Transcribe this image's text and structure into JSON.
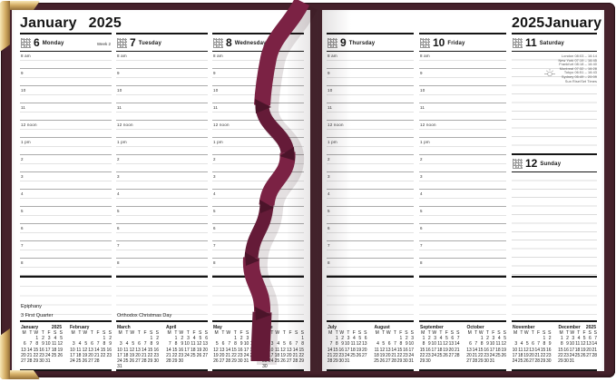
{
  "page_header_left": {
    "month": "January",
    "year": "2025"
  },
  "page_header_right": {
    "year": "2025",
    "month": "January"
  },
  "time_labels": [
    "8 am",
    "9",
    "10",
    "11",
    "12 noon",
    "1 pm",
    "2",
    "3",
    "4",
    "5",
    "6",
    "7",
    "8"
  ],
  "weekday_header": [
    "M",
    "T",
    "W",
    "T",
    "F",
    "S",
    "S"
  ],
  "left_days": [
    {
      "number": "6",
      "name": "Monday",
      "week_label": "Week 2",
      "notes": [
        "Epiphany",
        "3 First Quarter"
      ]
    },
    {
      "number": "7",
      "name": "Tuesday",
      "notes": [
        "Orthodox Christmas Day"
      ]
    },
    {
      "number": "8",
      "name": "Wednesday",
      "notes": []
    }
  ],
  "right_days": [
    {
      "number": "9",
      "name": "Thursday",
      "notes": []
    },
    {
      "number": "10",
      "name": "Friday",
      "notes": []
    }
  ],
  "saturday": {
    "number": "11",
    "name": "Saturday",
    "sun_times": [
      "London 08:03 – 16:14",
      "New York 07:19 – 16:45",
      "Frankfurt 08:18 – 16:40",
      "Montreal 07:32 – 16:28",
      "Tokyo 06:51 – 16:43",
      "Sydney 05:49 – 20:09",
      "Sun Rise/Set Times"
    ]
  },
  "sunday": {
    "number": "12",
    "name": "Sunday"
  },
  "mini_calendars_left": [
    {
      "name": "January",
      "year": "2025",
      "weeks": [
        [
          "",
          "",
          "1",
          "2",
          "3",
          "4",
          "5"
        ],
        [
          "6",
          "7",
          "8",
          "9",
          "10",
          "11",
          "12"
        ],
        [
          "13",
          "14",
          "15",
          "16",
          "17",
          "18",
          "19"
        ],
        [
          "20",
          "21",
          "22",
          "23",
          "24",
          "25",
          "26"
        ],
        [
          "27",
          "28",
          "29",
          "30",
          "31",
          "",
          ""
        ]
      ]
    },
    {
      "name": "February",
      "weeks": [
        [
          "",
          "",
          "",
          "",
          "",
          "1",
          "2"
        ],
        [
          "3",
          "4",
          "5",
          "6",
          "7",
          "8",
          "9"
        ],
        [
          "10",
          "11",
          "12",
          "13",
          "14",
          "15",
          "16"
        ],
        [
          "17",
          "18",
          "19",
          "20",
          "21",
          "22",
          "23"
        ],
        [
          "24",
          "25",
          "26",
          "27",
          "28",
          "",
          ""
        ]
      ]
    },
    {
      "name": "March",
      "weeks": [
        [
          "",
          "",
          "",
          "",
          "",
          "1",
          "2"
        ],
        [
          "3",
          "4",
          "5",
          "6",
          "7",
          "8",
          "9"
        ],
        [
          "10",
          "11",
          "12",
          "13",
          "14",
          "15",
          "16"
        ],
        [
          "17",
          "18",
          "19",
          "20",
          "21",
          "22",
          "23"
        ],
        [
          "24",
          "25",
          "26",
          "27",
          "28",
          "29",
          "30"
        ],
        [
          "31",
          "",
          "",
          "",
          "",
          "",
          ""
        ]
      ]
    },
    {
      "name": "April",
      "weeks": [
        [
          "",
          "1",
          "2",
          "3",
          "4",
          "5",
          "6"
        ],
        [
          "7",
          "8",
          "9",
          "10",
          "11",
          "12",
          "13"
        ],
        [
          "14",
          "15",
          "16",
          "17",
          "18",
          "19",
          "20"
        ],
        [
          "21",
          "22",
          "23",
          "24",
          "25",
          "26",
          "27"
        ],
        [
          "28",
          "29",
          "30",
          "",
          "",
          "",
          ""
        ]
      ]
    },
    {
      "name": "May",
      "weeks": [
        [
          "",
          "",
          "",
          "1",
          "2",
          "3",
          "4"
        ],
        [
          "5",
          "6",
          "7",
          "8",
          "9",
          "10",
          "11"
        ],
        [
          "12",
          "13",
          "14",
          "15",
          "16",
          "17",
          "18"
        ],
        [
          "19",
          "20",
          "21",
          "22",
          "23",
          "24",
          "25"
        ],
        [
          "26",
          "27",
          "28",
          "29",
          "30",
          "31",
          ""
        ]
      ]
    },
    {
      "name": "June",
      "weeks": [
        [
          "",
          "",
          "",
          "",
          "",
          "",
          "1"
        ],
        [
          "2",
          "3",
          "4",
          "5",
          "6",
          "7",
          "8"
        ],
        [
          "9",
          "10",
          "11",
          "12",
          "13",
          "14",
          "15"
        ],
        [
          "16",
          "17",
          "18",
          "19",
          "20",
          "21",
          "22"
        ],
        [
          "23",
          "24",
          "25",
          "26",
          "27",
          "28",
          "29"
        ],
        [
          "30",
          "",
          "",
          "",
          "",
          "",
          ""
        ]
      ]
    }
  ],
  "mini_calendars_right": [
    {
      "name": "July",
      "weeks": [
        [
          "",
          "1",
          "2",
          "3",
          "4",
          "5",
          "6"
        ],
        [
          "7",
          "8",
          "9",
          "10",
          "11",
          "12",
          "13"
        ],
        [
          "14",
          "15",
          "16",
          "17",
          "18",
          "19",
          "20"
        ],
        [
          "21",
          "22",
          "23",
          "24",
          "25",
          "26",
          "27"
        ],
        [
          "28",
          "29",
          "30",
          "31",
          "",
          "",
          ""
        ]
      ]
    },
    {
      "name": "August",
      "weeks": [
        [
          "",
          "",
          "",
          "",
          "1",
          "2",
          "3"
        ],
        [
          "4",
          "5",
          "6",
          "7",
          "8",
          "9",
          "10"
        ],
        [
          "11",
          "12",
          "13",
          "14",
          "15",
          "16",
          "17"
        ],
        [
          "18",
          "19",
          "20",
          "21",
          "22",
          "23",
          "24"
        ],
        [
          "25",
          "26",
          "27",
          "28",
          "29",
          "30",
          "31"
        ]
      ]
    },
    {
      "name": "September",
      "weeks": [
        [
          "1",
          "2",
          "3",
          "4",
          "5",
          "6",
          "7"
        ],
        [
          "8",
          "9",
          "10",
          "11",
          "12",
          "13",
          "14"
        ],
        [
          "15",
          "16",
          "17",
          "18",
          "19",
          "20",
          "21"
        ],
        [
          "22",
          "23",
          "24",
          "25",
          "26",
          "27",
          "28"
        ],
        [
          "29",
          "30",
          "",
          "",
          "",
          "",
          ""
        ]
      ]
    },
    {
      "name": "October",
      "weeks": [
        [
          "",
          "",
          "1",
          "2",
          "3",
          "4",
          "5"
        ],
        [
          "6",
          "7",
          "8",
          "9",
          "10",
          "11",
          "12"
        ],
        [
          "13",
          "14",
          "15",
          "16",
          "17",
          "18",
          "19"
        ],
        [
          "20",
          "21",
          "22",
          "23",
          "24",
          "25",
          "26"
        ],
        [
          "27",
          "28",
          "29",
          "30",
          "31",
          "",
          ""
        ]
      ]
    },
    {
      "name": "November",
      "weeks": [
        [
          "",
          "",
          "",
          "",
          "",
          "1",
          "2"
        ],
        [
          "3",
          "4",
          "5",
          "6",
          "7",
          "8",
          "9"
        ],
        [
          "10",
          "11",
          "12",
          "13",
          "14",
          "15",
          "16"
        ],
        [
          "17",
          "18",
          "19",
          "20",
          "21",
          "22",
          "23"
        ],
        [
          "24",
          "25",
          "26",
          "27",
          "28",
          "29",
          "30"
        ]
      ]
    },
    {
      "name": "December",
      "year": "2025",
      "weeks": [
        [
          "1",
          "2",
          "3",
          "4",
          "5",
          "6",
          "7"
        ],
        [
          "8",
          "9",
          "10",
          "11",
          "12",
          "13",
          "14"
        ],
        [
          "15",
          "16",
          "17",
          "18",
          "19",
          "20",
          "21"
        ],
        [
          "22",
          "23",
          "24",
          "25",
          "26",
          "27",
          "28"
        ],
        [
          "29",
          "30",
          "31",
          "",
          "",
          "",
          ""
        ]
      ]
    }
  ],
  "colors": {
    "cover": "#45212b",
    "ribbon": "#7b2244",
    "gold": "#d2ab62",
    "page": "#ffffff"
  }
}
